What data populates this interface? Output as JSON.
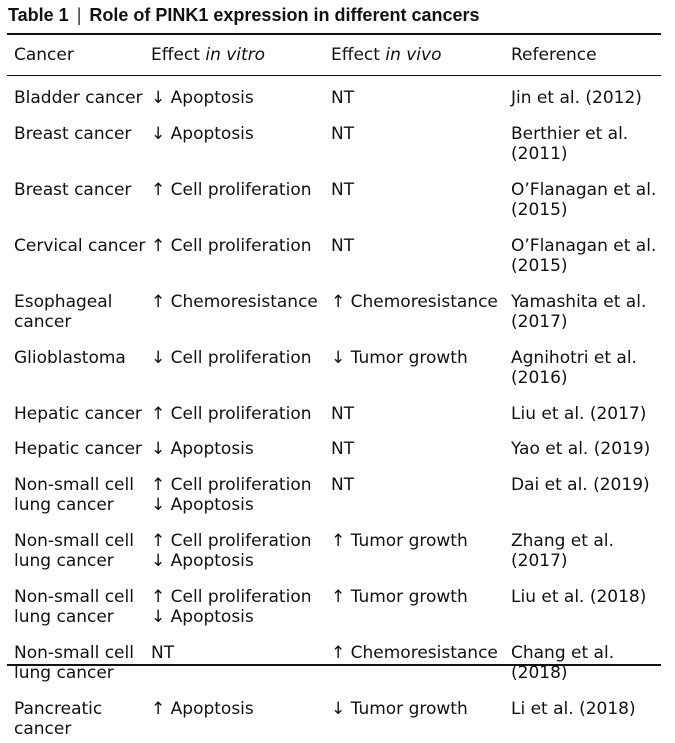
{
  "table": {
    "label": "Table 1",
    "separator": "|",
    "title": "Role of PINK1 expression in different cancers",
    "headers": {
      "cancer": "Cancer",
      "in_vitro_prefix": "Effect ",
      "in_vitro_italic": "in vitro",
      "in_vivo_prefix": "Effect ",
      "in_vivo_italic": "in vivo",
      "reference": "Reference"
    },
    "rows": [
      {
        "cancer": [
          "Bladder cancer"
        ],
        "in_vitro": [
          "↓ Apoptosis"
        ],
        "in_vivo": [
          "NT"
        ],
        "reference": [
          "Jin et al. (2012)"
        ]
      },
      {
        "cancer": [
          "Breast cancer"
        ],
        "in_vitro": [
          "↓ Apoptosis"
        ],
        "in_vivo": [
          "NT"
        ],
        "reference": [
          "Berthier et al.",
          "(2011)"
        ]
      },
      {
        "cancer": [
          "Breast cancer"
        ],
        "in_vitro": [
          "↑ Cell proliferation"
        ],
        "in_vivo": [
          "NT"
        ],
        "reference": [
          "O’Flanagan et al.",
          "(2015)"
        ]
      },
      {
        "cancer": [
          "Cervical cancer"
        ],
        "in_vitro": [
          "↑ Cell proliferation"
        ],
        "in_vivo": [
          "NT"
        ],
        "reference": [
          "O’Flanagan et al.",
          "(2015)"
        ]
      },
      {
        "cancer": [
          "Esophageal",
          "cancer"
        ],
        "in_vitro": [
          "↑ Chemoresistance"
        ],
        "in_vivo": [
          "↑ Chemoresistance"
        ],
        "reference": [
          "Yamashita et al.",
          "(2017)"
        ]
      },
      {
        "cancer": [
          "Glioblastoma"
        ],
        "in_vitro": [
          "↓ Cell proliferation"
        ],
        "in_vivo": [
          "↓ Tumor growth"
        ],
        "reference": [
          "Agnihotri et al.",
          "(2016)"
        ]
      },
      {
        "cancer": [
          "Hepatic cancer"
        ],
        "in_vitro": [
          "↑ Cell proliferation"
        ],
        "in_vivo": [
          "NT"
        ],
        "reference": [
          "Liu et al. (2017)"
        ]
      },
      {
        "cancer": [
          "Hepatic cancer"
        ],
        "in_vitro": [
          "↓ Apoptosis"
        ],
        "in_vivo": [
          "NT"
        ],
        "reference": [
          "Yao et al. (2019)"
        ]
      },
      {
        "cancer": [
          "Non-small cell",
          "lung cancer"
        ],
        "in_vitro": [
          "↑ Cell proliferation",
          "↓ Apoptosis"
        ],
        "in_vivo": [
          "NT"
        ],
        "reference": [
          "Dai et al. (2019)"
        ]
      },
      {
        "cancer": [
          "Non-small cell",
          "lung cancer"
        ],
        "in_vitro": [
          "↑ Cell proliferation",
          "↓ Apoptosis"
        ],
        "in_vivo": [
          "↑ Tumor growth"
        ],
        "reference": [
          "Zhang et al.",
          "(2017)"
        ]
      },
      {
        "cancer": [
          "Non-small cell",
          "lung cancer"
        ],
        "in_vitro": [
          "↑ Cell proliferation",
          "↓ Apoptosis"
        ],
        "in_vivo": [
          "↑ Tumor growth"
        ],
        "reference": [
          "Liu et al. (2018)"
        ]
      },
      {
        "cancer": [
          "Non-small cell",
          "lung cancer"
        ],
        "in_vitro": [
          "NT"
        ],
        "in_vivo": [
          "↑ Chemoresistance"
        ],
        "reference": [
          "Chang et al.",
          "(2018)"
        ]
      },
      {
        "cancer": [
          "Pancreatic",
          "cancer"
        ],
        "in_vitro": [
          "↑ Apoptosis"
        ],
        "in_vivo": [
          "↓ Tumor growth"
        ],
        "reference": [
          "Li et al. (2018)"
        ]
      }
    ]
  }
}
